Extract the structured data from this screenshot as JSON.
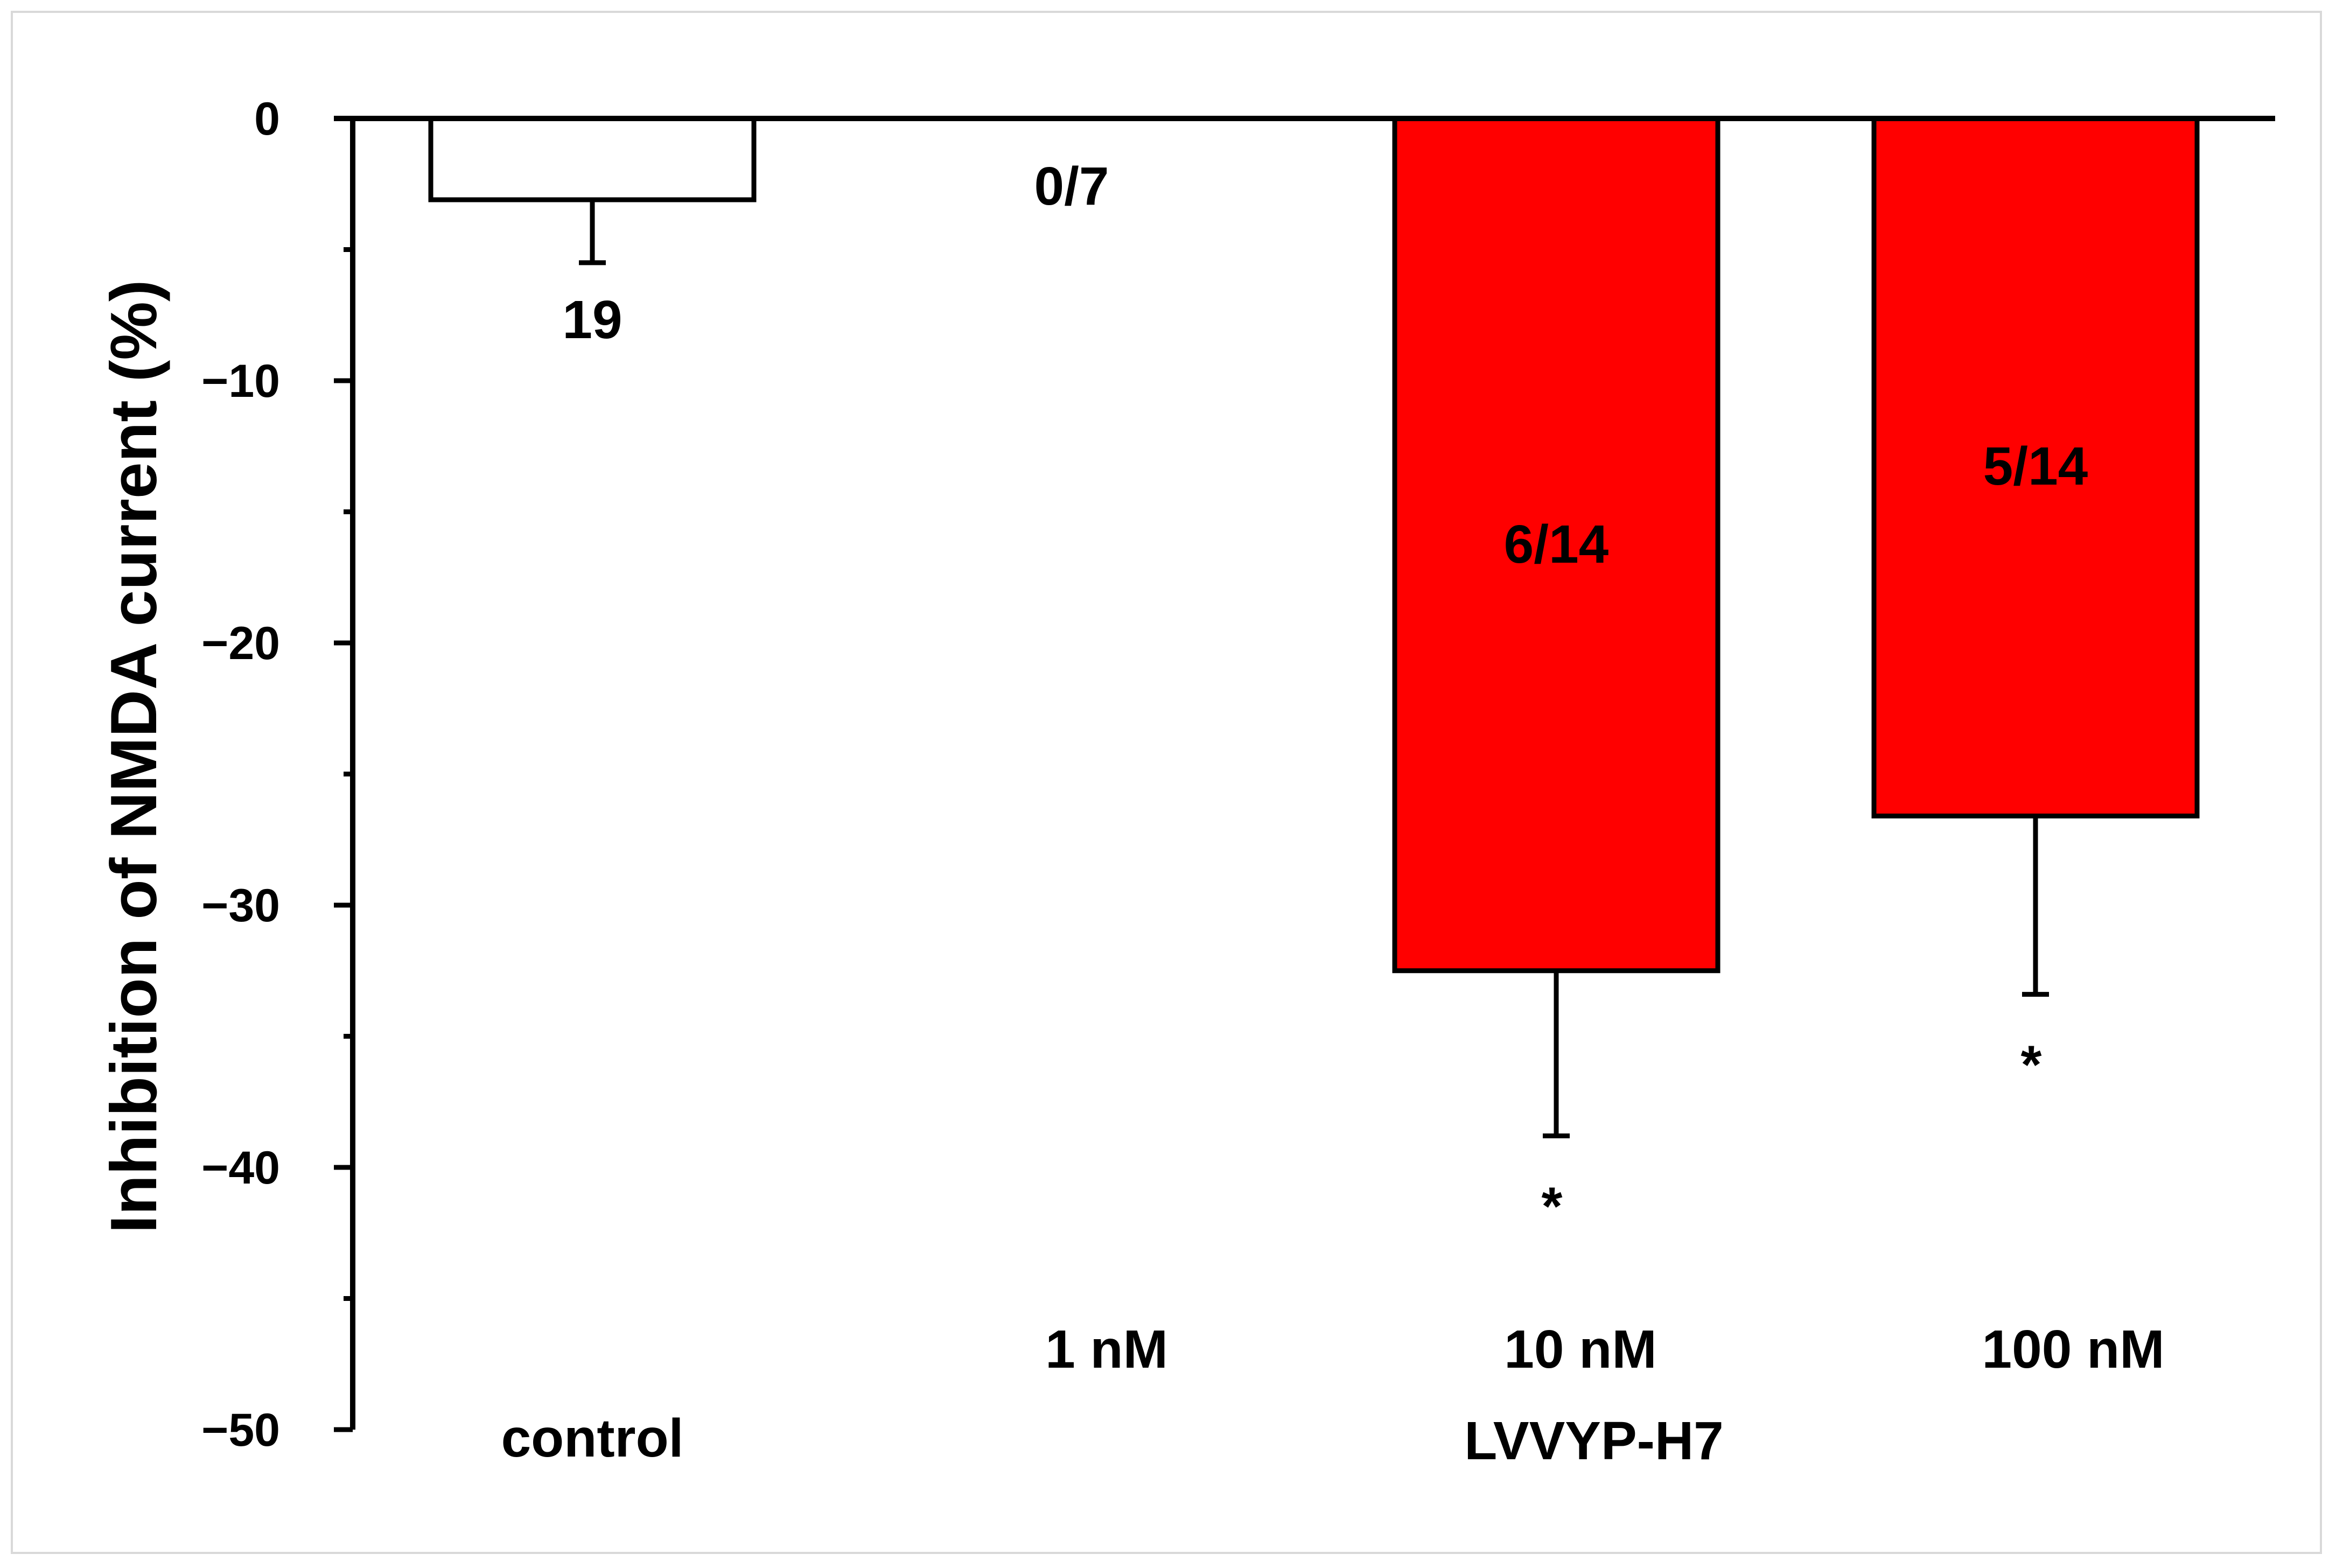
{
  "chart_data": {
    "type": "bar",
    "ylabel": "Inhibition of NMDA current (%)",
    "ylim": [
      -50,
      0
    ],
    "y_ticks": [
      0,
      -10,
      -20,
      -30,
      -40,
      -50
    ],
    "y_tick_labels": [
      "0",
      "−10",
      "−20",
      "−30",
      "−40",
      "−50"
    ],
    "categories": [
      "control",
      "1 nM",
      "10 nM",
      "100 nM"
    ],
    "group_label": "LVVYP-H7",
    "grid": false,
    "bars": [
      {
        "category": "control",
        "value": -3.1,
        "error": 2.4,
        "color": "#ffffff",
        "label": "19",
        "significance": ""
      },
      {
        "category": "1 nM",
        "value": 0,
        "error": 0,
        "color": "#ff0000",
        "label": "0/7",
        "significance": ""
      },
      {
        "category": "10 nM",
        "value": -32.5,
        "error": 6.3,
        "color": "#ff0000",
        "label": "6/14",
        "significance": "*"
      },
      {
        "category": "100 nM",
        "value": -26.6,
        "error": 6.8,
        "color": "#ff0000",
        "label": "5/14",
        "significance": "*"
      }
    ]
  }
}
